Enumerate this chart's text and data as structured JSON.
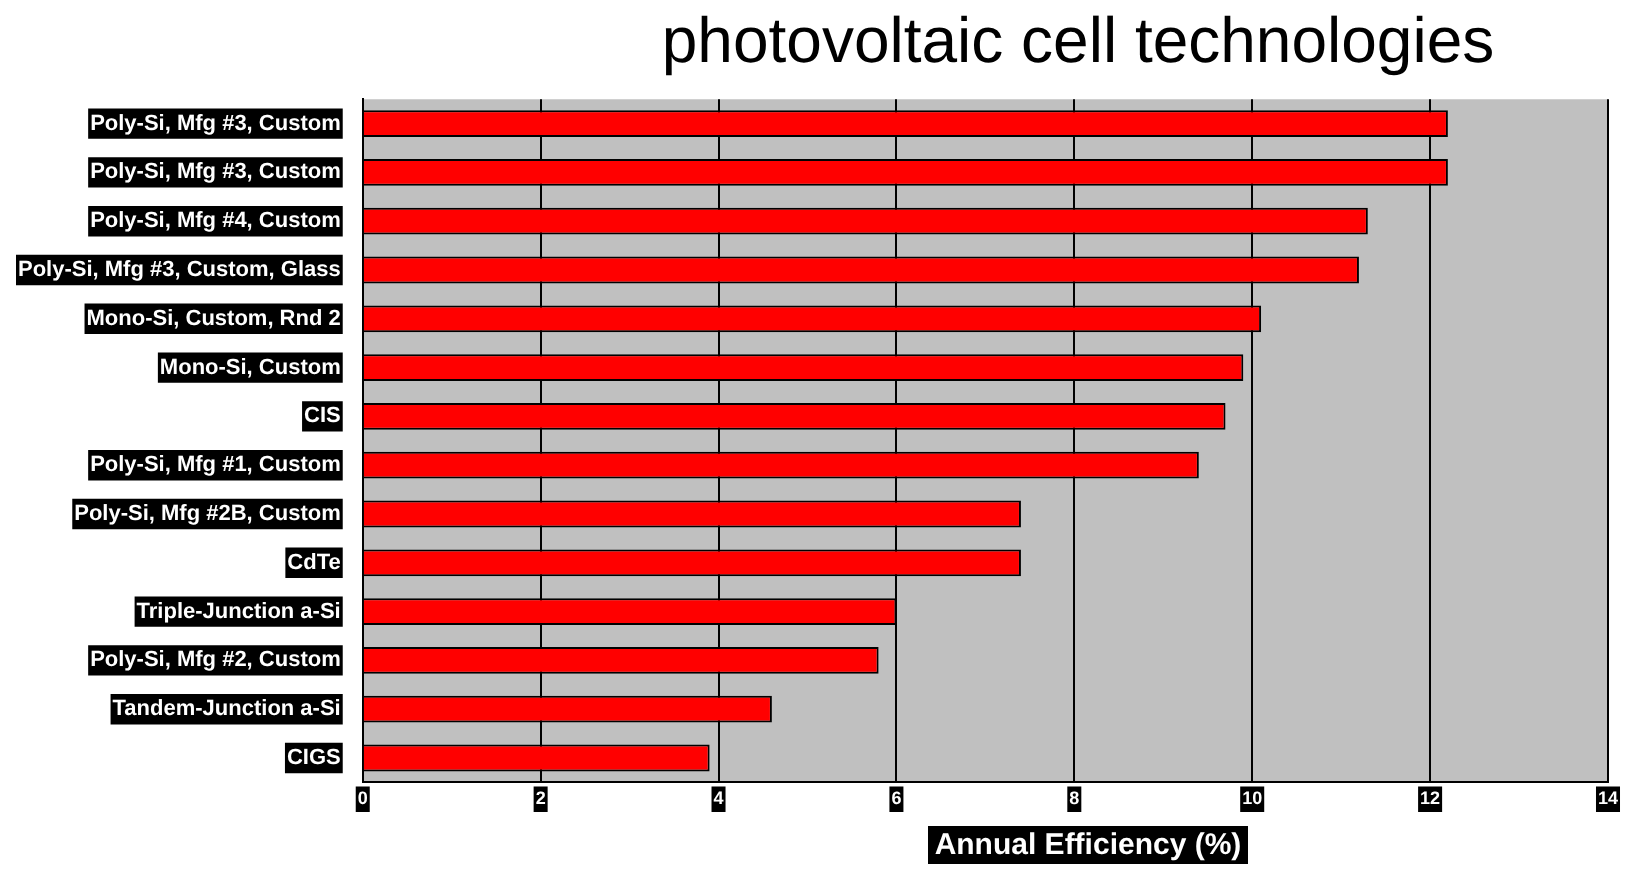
{
  "chart_data": {
    "type": "bar",
    "orientation": "horizontal",
    "title": "photovoltaic cell technologies",
    "xlabel": "Annual Efficiency (%)",
    "categories": [
      "Poly-Si, Mfg #3, Custom",
      "Poly-Si, Mfg #3, Custom",
      "Poly-Si, Mfg #4, Custom",
      "Poly-Si, Mfg #3, Custom, Glass",
      "Mono-Si, Custom, Rnd 2",
      "Mono-Si, Custom",
      "CIS",
      "Poly-Si, Mfg #1, Custom",
      "Poly-Si, Mfg #2B, Custom",
      "CdTe",
      "Triple-Junction a-Si",
      "Poly-Si, Mfg #2, Custom",
      "Tandem-Junction a-Si",
      "CIGS"
    ],
    "values": [
      12.2,
      12.2,
      11.3,
      11.2,
      10.1,
      9.9,
      9.7,
      9.4,
      7.4,
      7.4,
      6.0,
      5.8,
      4.6,
      3.9
    ],
    "color": "#ff0000",
    "xlim": [
      0,
      14
    ],
    "xticks": [
      0,
      2,
      4,
      6,
      8,
      10,
      12,
      14
    ],
    "grid": "x",
    "legend": false
  }
}
